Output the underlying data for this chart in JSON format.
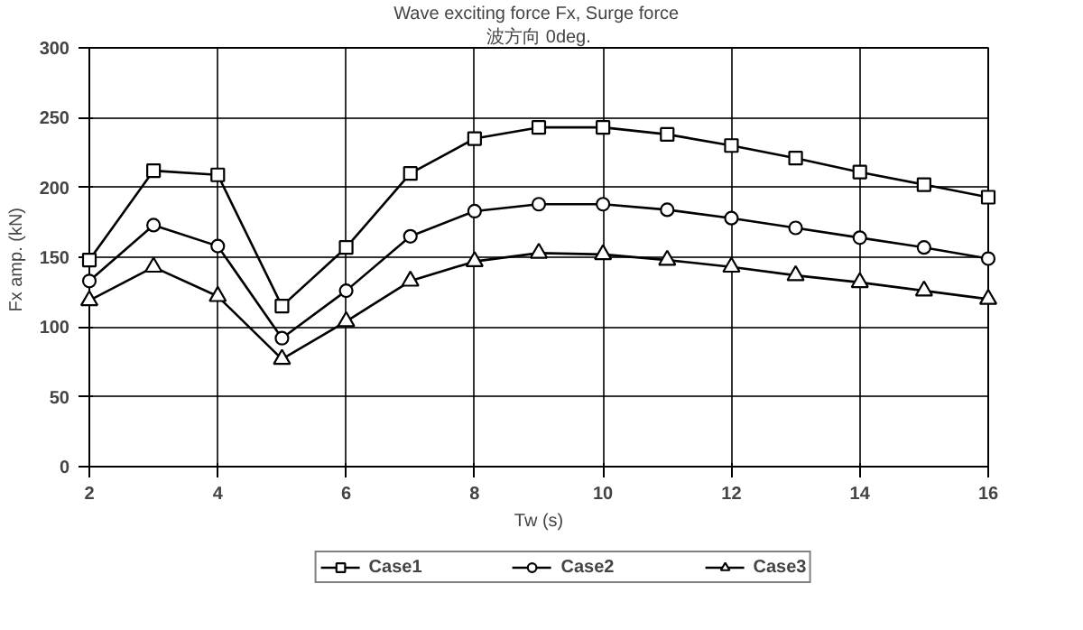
{
  "chart_data": {
    "type": "line",
    "title": "Wave exciting force Fx,  Surge force",
    "subtitle": "波方向 0deg.",
    "xlabel": "Tw (s)",
    "ylabel": "Fx amp.  (kN)",
    "x": [
      2,
      3,
      4,
      5,
      6,
      7,
      8,
      9,
      10,
      11,
      12,
      13,
      14,
      15,
      16
    ],
    "xlim": [
      2,
      16
    ],
    "xticks": [
      2,
      4,
      6,
      8,
      10,
      12,
      14,
      16
    ],
    "ylim": [
      0,
      300
    ],
    "yticks": [
      0,
      50,
      100,
      150,
      200,
      250,
      300
    ],
    "grid": true,
    "legend": "bottom",
    "line_style": "solid",
    "series": [
      {
        "name": "Case1",
        "color": "#000000",
        "marker": "square",
        "values": [
          148,
          212,
          209,
          115,
          157,
          210,
          235,
          243,
          243,
          238,
          230,
          221,
          211,
          202,
          193
        ]
      },
      {
        "name": "Case2",
        "color": "#000000",
        "marker": "circle",
        "values": [
          133,
          173,
          158,
          92,
          126,
          165,
          183,
          188,
          188,
          184,
          178,
          171,
          164,
          157,
          149
        ]
      },
      {
        "name": "Case3",
        "color": "#000000",
        "marker": "triangle",
        "values": [
          119,
          143,
          122,
          77,
          104,
          133,
          147,
          153,
          152,
          148,
          143,
          137,
          132,
          126,
          120
        ]
      }
    ]
  }
}
